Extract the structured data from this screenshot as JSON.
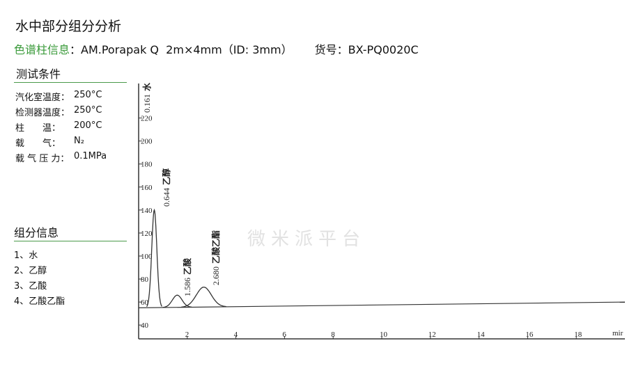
{
  "header": {
    "title": "水中部分组分分析",
    "column_label": "色谱柱信息",
    "column_text": "：AM.Porapak Q  2m×4mm（ID: 3mm）",
    "part_label": "货号：",
    "part_no": "BX-PQ0020C"
  },
  "conditions": {
    "title": "测试条件",
    "rows": [
      [
        "汽化室温度：",
        "250°C"
      ],
      [
        "检测器温度：",
        "250°C"
      ],
      [
        "柱　　温：",
        "200°C"
      ],
      [
        "载　　气：",
        "N₂"
      ],
      [
        "载 气 压 力：",
        "0.1MPa"
      ]
    ]
  },
  "components": {
    "title": "组分信息",
    "items": [
      "1、水",
      "2、乙醇",
      "3、乙酸",
      "4、乙酸乙酯"
    ]
  },
  "watermark": "微米派平台",
  "chromatogram": {
    "xlim": [
      0,
      20
    ],
    "ylim": [
      28,
      250
    ],
    "xticks": [
      2,
      4,
      6,
      8,
      10,
      12,
      14,
      16,
      18
    ],
    "x_unit": "mir",
    "yticks": [
      40,
      60,
      80,
      100,
      120,
      140,
      160,
      180,
      200,
      220
    ],
    "baseline": {
      "x": [
        0,
        20
      ],
      "values": [
        55,
        60
      ]
    },
    "peaks": [
      {
        "time": {
          "value": 0.161,
          "label": "0.161"
        },
        "name": "水"
      },
      {
        "time": {
          "value": 0.644,
          "label": "0.644"
        },
        "name": "乙醇",
        "height": 140
      },
      {
        "time": {
          "value": 1.586,
          "label": "1.586"
        },
        "name": "乙酸",
        "height": 66
      },
      {
        "time": {
          "value": 2.68,
          "label": "2.680"
        },
        "name": "乙酸乙酯",
        "height": 73
      }
    ]
  }
}
